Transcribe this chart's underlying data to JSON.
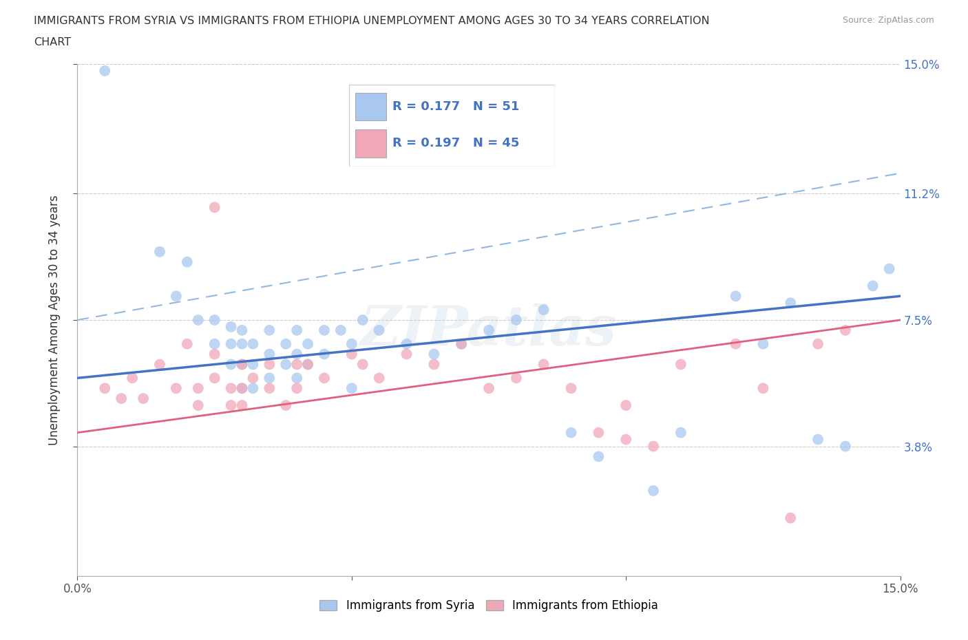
{
  "title_line1": "IMMIGRANTS FROM SYRIA VS IMMIGRANTS FROM ETHIOPIA UNEMPLOYMENT AMONG AGES 30 TO 34 YEARS CORRELATION",
  "title_line2": "CHART",
  "source": "Source: ZipAtlas.com",
  "ylabel": "Unemployment Among Ages 30 to 34 years",
  "xlim": [
    0.0,
    0.15
  ],
  "ylim": [
    0.0,
    0.15
  ],
  "x_tick_vals": [
    0.0,
    0.05,
    0.1,
    0.15
  ],
  "x_tick_labels": [
    "0.0%",
    "",
    "",
    "15.0%"
  ],
  "y_tick_vals_right": [
    0.038,
    0.075,
    0.112,
    0.15
  ],
  "y_tick_labels_right": [
    "3.8%",
    "7.5%",
    "11.2%",
    "15.0%"
  ],
  "syria_color": "#a8c8f0",
  "ethiopia_color": "#f0a8b8",
  "syria_line_color": "#4472c4",
  "ethiopia_line_color": "#e06080",
  "dashed_line_color": "#90b8e0",
  "R_syria": 0.177,
  "N_syria": 51,
  "R_ethiopia": 0.197,
  "N_ethiopia": 45,
  "legend_label_syria": "Immigrants from Syria",
  "legend_label_ethiopia": "Immigrants from Ethiopia",
  "watermark": "ZIPatlas",
  "syria_scatter": [
    [
      0.005,
      0.148
    ],
    [
      0.015,
      0.095
    ],
    [
      0.018,
      0.082
    ],
    [
      0.02,
      0.092
    ],
    [
      0.022,
      0.075
    ],
    [
      0.025,
      0.068
    ],
    [
      0.025,
      0.075
    ],
    [
      0.028,
      0.073
    ],
    [
      0.028,
      0.068
    ],
    [
      0.028,
      0.062
    ],
    [
      0.03,
      0.072
    ],
    [
      0.03,
      0.068
    ],
    [
      0.03,
      0.062
    ],
    [
      0.03,
      0.055
    ],
    [
      0.032,
      0.068
    ],
    [
      0.032,
      0.062
    ],
    [
      0.032,
      0.055
    ],
    [
      0.035,
      0.072
    ],
    [
      0.035,
      0.065
    ],
    [
      0.035,
      0.058
    ],
    [
      0.038,
      0.068
    ],
    [
      0.038,
      0.062
    ],
    [
      0.04,
      0.072
    ],
    [
      0.04,
      0.065
    ],
    [
      0.04,
      0.058
    ],
    [
      0.042,
      0.068
    ],
    [
      0.042,
      0.062
    ],
    [
      0.045,
      0.072
    ],
    [
      0.045,
      0.065
    ],
    [
      0.048,
      0.072
    ],
    [
      0.05,
      0.068
    ],
    [
      0.05,
      0.055
    ],
    [
      0.052,
      0.075
    ],
    [
      0.055,
      0.072
    ],
    [
      0.06,
      0.068
    ],
    [
      0.065,
      0.065
    ],
    [
      0.07,
      0.068
    ],
    [
      0.075,
      0.072
    ],
    [
      0.08,
      0.075
    ],
    [
      0.085,
      0.078
    ],
    [
      0.09,
      0.042
    ],
    [
      0.095,
      0.035
    ],
    [
      0.105,
      0.025
    ],
    [
      0.11,
      0.042
    ],
    [
      0.12,
      0.082
    ],
    [
      0.125,
      0.068
    ],
    [
      0.13,
      0.08
    ],
    [
      0.135,
      0.04
    ],
    [
      0.14,
      0.038
    ],
    [
      0.145,
      0.085
    ],
    [
      0.148,
      0.09
    ]
  ],
  "ethiopia_scatter": [
    [
      0.005,
      0.055
    ],
    [
      0.008,
      0.052
    ],
    [
      0.01,
      0.058
    ],
    [
      0.012,
      0.052
    ],
    [
      0.015,
      0.062
    ],
    [
      0.018,
      0.055
    ],
    [
      0.02,
      0.068
    ],
    [
      0.022,
      0.055
    ],
    [
      0.022,
      0.05
    ],
    [
      0.025,
      0.108
    ],
    [
      0.025,
      0.065
    ],
    [
      0.025,
      0.058
    ],
    [
      0.028,
      0.055
    ],
    [
      0.028,
      0.05
    ],
    [
      0.03,
      0.062
    ],
    [
      0.03,
      0.055
    ],
    [
      0.03,
      0.05
    ],
    [
      0.032,
      0.058
    ],
    [
      0.035,
      0.062
    ],
    [
      0.035,
      0.055
    ],
    [
      0.038,
      0.05
    ],
    [
      0.04,
      0.062
    ],
    [
      0.04,
      0.055
    ],
    [
      0.042,
      0.062
    ],
    [
      0.045,
      0.058
    ],
    [
      0.05,
      0.065
    ],
    [
      0.052,
      0.062
    ],
    [
      0.055,
      0.058
    ],
    [
      0.06,
      0.065
    ],
    [
      0.065,
      0.062
    ],
    [
      0.07,
      0.068
    ],
    [
      0.075,
      0.055
    ],
    [
      0.08,
      0.058
    ],
    [
      0.085,
      0.062
    ],
    [
      0.09,
      0.055
    ],
    [
      0.095,
      0.042
    ],
    [
      0.1,
      0.05
    ],
    [
      0.1,
      0.04
    ],
    [
      0.105,
      0.038
    ],
    [
      0.11,
      0.062
    ],
    [
      0.12,
      0.068
    ],
    [
      0.125,
      0.055
    ],
    [
      0.13,
      0.017
    ],
    [
      0.135,
      0.068
    ],
    [
      0.14,
      0.072
    ]
  ],
  "syria_trend": [
    0.0,
    0.15,
    0.058,
    0.082
  ],
  "ethiopia_trend": [
    0.0,
    0.15,
    0.042,
    0.075
  ],
  "dashed_trend": [
    0.0,
    0.15,
    0.075,
    0.118
  ]
}
